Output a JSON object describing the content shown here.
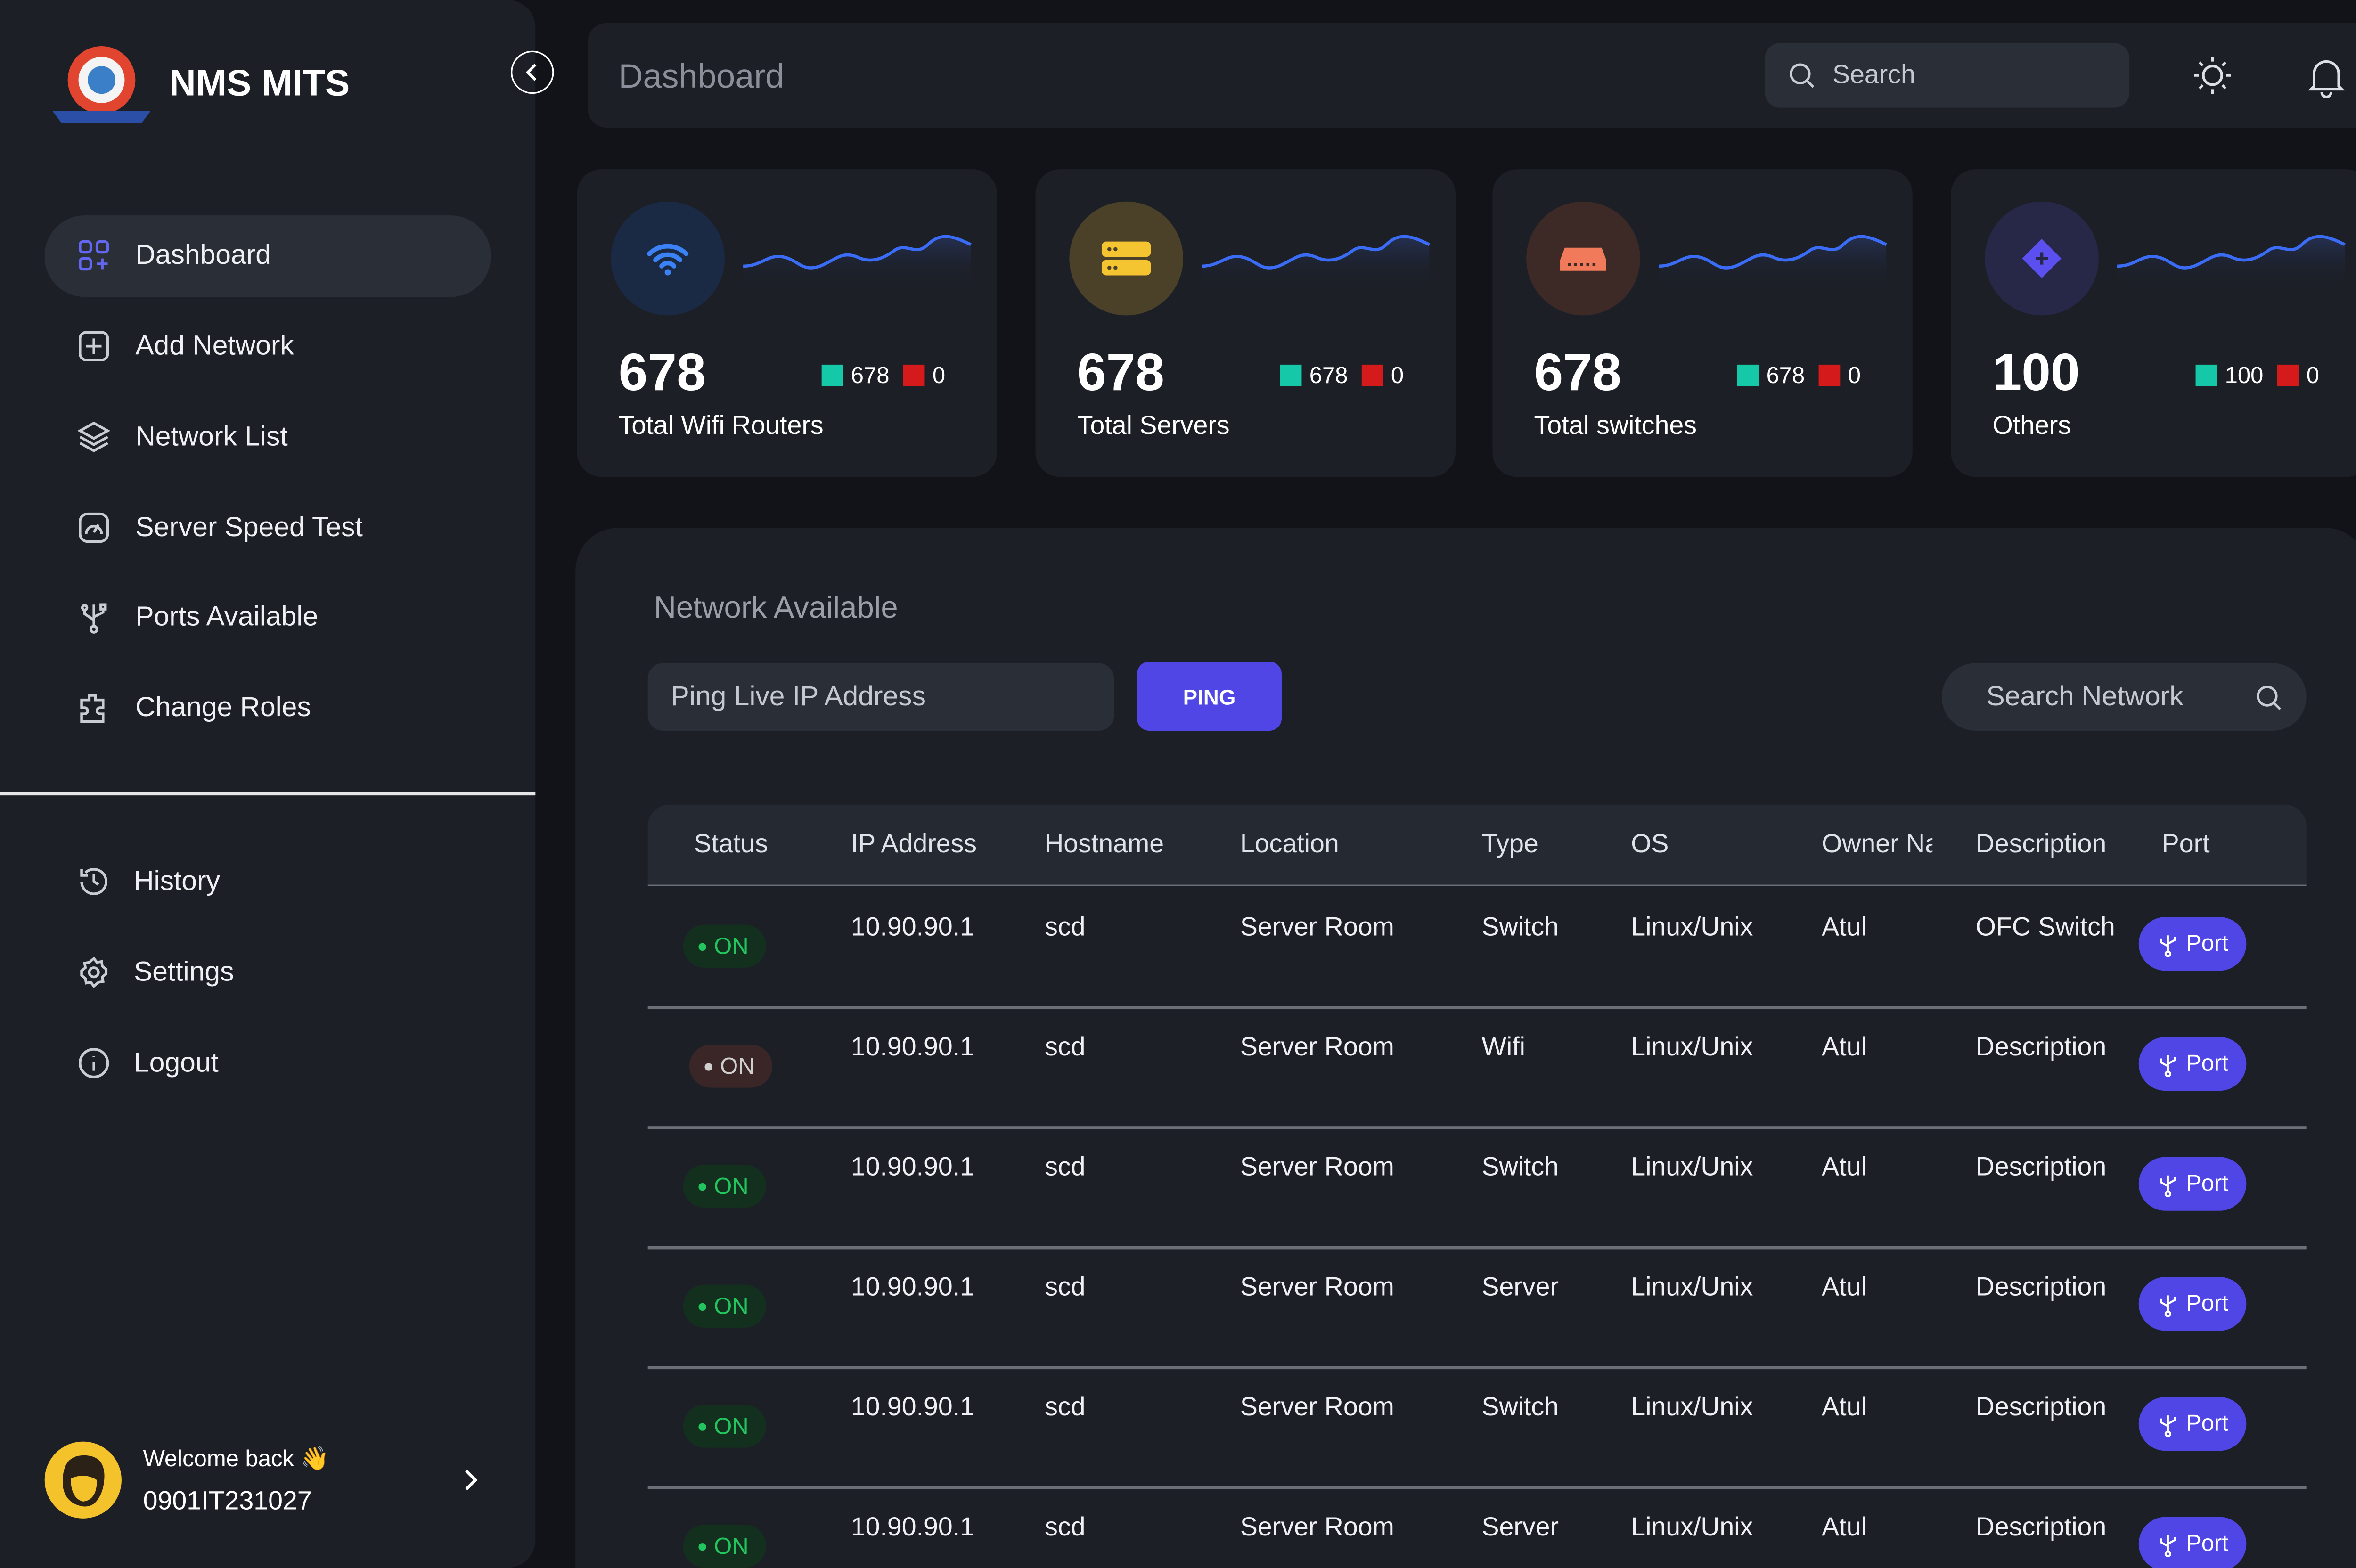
{
  "sidebar": {
    "brand": "NMS MITS",
    "nav": [
      "Dashboard",
      "Add Network",
      "Network List",
      "Server Speed Test",
      "Ports Available",
      "Change Roles"
    ],
    "secondary_nav": [
      "History",
      "Settings",
      "Logout"
    ],
    "user": {
      "greeting": "Welcome back 👋",
      "id": "0901IT231027"
    }
  },
  "header": {
    "title": "Dashboard",
    "search": "Search"
  },
  "cards": [
    {
      "value": 678,
      "up": 678,
      "down": 0,
      "label": "Total Wifi Routers",
      "icon_bg": "#1a2a45",
      "icon_color": "#3b82f6"
    },
    {
      "value": 678,
      "up": 678,
      "down": 0,
      "label": "Total Servers",
      "icon_bg": "#4a4128",
      "icon_color": "#f5c431"
    },
    {
      "value": 678,
      "up": 678,
      "down": 0,
      "label": "Total switches",
      "icon_bg": "#3d2a27",
      "icon_color": "#f07a5a"
    },
    {
      "value": 100,
      "up": 100,
      "down": 0,
      "label": "Others",
      "icon_bg": "#272848",
      "icon_color": "#5b4ff0"
    }
  ],
  "panel": {
    "title": "Network Available",
    "ping_placeholder": "Ping Live IP Address",
    "ping_button": "PING",
    "search_placeholder": "Search Network",
    "table": {
      "columns": [
        "Status",
        "IP Address",
        "Hostname",
        "Location",
        "Type",
        "OS",
        "Owner Na",
        "Description",
        "Port"
      ],
      "rows": [
        {
          "status": "ON",
          "status_color": "#22c55e",
          "status_bg": "#13301f",
          "cells": [
            "10.90.90.1",
            "scd",
            "Server Room",
            "Switch",
            "Linux/Unix",
            "Atul",
            "OFC Switch"
          ],
          "port": "Port"
        },
        {
          "status": "ON",
          "status_color": "#cfcfcf",
          "status_bg": "#3a2626",
          "cells": [
            "10.90.90.1",
            "scd",
            "Server Room",
            "Wifi",
            "Linux/Unix",
            "Atul",
            "Description"
          ],
          "port": "Port"
        },
        {
          "status": "ON",
          "status_color": "#22c55e",
          "status_bg": "#13301f",
          "cells": [
            "10.90.90.1",
            "scd",
            "Server Room",
            "Switch",
            "Linux/Unix",
            "Atul",
            "Description"
          ],
          "port": "Port"
        },
        {
          "status": "ON",
          "status_color": "#22c55e",
          "status_bg": "#13301f",
          "cells": [
            "10.90.90.1",
            "scd",
            "Server Room",
            "Server",
            "Linux/Unix",
            "Atul",
            "Description"
          ],
          "port": "Port"
        },
        {
          "status": "ON",
          "status_color": "#22c55e",
          "status_bg": "#13301f",
          "cells": [
            "10.90.90.1",
            "scd",
            "Server Room",
            "Switch",
            "Linux/Unix",
            "Atul",
            "Description"
          ],
          "port": "Port"
        },
        {
          "status": "ON",
          "status_color": "#22c55e",
          "status_bg": "#13301f",
          "cells": [
            "10.90.90.1",
            "scd",
            "Server Room",
            "Server",
            "Linux/Unix",
            "Atul",
            "Description"
          ],
          "port": "Port"
        }
      ]
    }
  }
}
